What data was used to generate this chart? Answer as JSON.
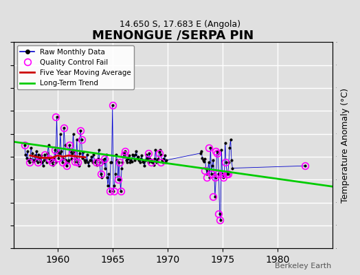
{
  "title": "MENONGUE /SERPA PIN",
  "subtitle": "14.650 S, 17.683 E (Angola)",
  "ylabel": "Temperature Anomaly (°C)",
  "xlabel": "",
  "watermark": "Berkeley Earth",
  "xlim": [
    1956,
    1985
  ],
  "ylim": [
    -8,
    10
  ],
  "yticks": [
    -8,
    -6,
    -4,
    -2,
    0,
    2,
    4,
    6,
    8,
    10
  ],
  "xticks": [
    1960,
    1965,
    1970,
    1975,
    1980
  ],
  "background_color": "#e8e8e8",
  "raw_data": {
    "x": [
      1957.0,
      1957.08,
      1957.17,
      1957.25,
      1957.33,
      1957.42,
      1957.5,
      1957.58,
      1957.67,
      1957.75,
      1957.83,
      1957.92,
      1958.0,
      1958.08,
      1958.17,
      1958.25,
      1958.33,
      1958.42,
      1958.5,
      1958.58,
      1958.67,
      1958.75,
      1958.83,
      1958.92,
      1959.0,
      1959.08,
      1959.17,
      1959.25,
      1959.33,
      1959.42,
      1959.5,
      1959.58,
      1959.67,
      1959.75,
      1959.83,
      1959.92,
      1960.0,
      1960.08,
      1960.17,
      1960.25,
      1960.33,
      1960.42,
      1960.5,
      1960.58,
      1960.67,
      1960.75,
      1960.83,
      1960.92,
      1961.0,
      1961.08,
      1961.17,
      1961.25,
      1961.33,
      1961.42,
      1961.5,
      1961.58,
      1961.67,
      1961.75,
      1961.83,
      1961.92,
      1962.0,
      1962.08,
      1962.17,
      1962.25,
      1962.33,
      1962.42,
      1962.5,
      1962.58,
      1962.67,
      1962.75,
      1962.83,
      1962.92,
      1963.0,
      1963.08,
      1963.17,
      1963.25,
      1963.42,
      1963.5,
      1963.58,
      1963.67,
      1963.75,
      1963.83,
      1963.92,
      1964.0,
      1964.08,
      1964.17,
      1964.25,
      1964.33,
      1964.42,
      1964.5,
      1964.58,
      1964.67,
      1964.75,
      1964.83,
      1964.92,
      1965.0,
      1965.08,
      1965.17,
      1965.25,
      1965.33,
      1965.42,
      1965.5,
      1965.58,
      1965.67,
      1965.75,
      1965.83,
      1965.92,
      1966.0,
      1966.08,
      1966.17,
      1966.25,
      1966.33,
      1966.42,
      1966.5,
      1966.58,
      1966.67,
      1966.75,
      1966.83,
      1966.92,
      1967.0,
      1967.08,
      1967.17,
      1967.25,
      1967.33,
      1967.42,
      1967.5,
      1967.58,
      1967.67,
      1967.75,
      1967.83,
      1967.92,
      1968.0,
      1968.08,
      1968.17,
      1968.25,
      1968.33,
      1968.42,
      1968.5,
      1968.58,
      1968.67,
      1968.75,
      1968.83,
      1968.92,
      1969.0,
      1969.08,
      1969.17,
      1969.25,
      1969.33,
      1969.42,
      1969.5,
      1969.58,
      1969.67,
      1969.75,
      1969.83,
      1969.92,
      1973.0,
      1973.08,
      1973.17,
      1973.25,
      1973.33,
      1973.42,
      1973.5,
      1973.58,
      1973.67,
      1973.75,
      1973.83,
      1973.92,
      1974.0,
      1974.08,
      1974.17,
      1974.25,
      1974.33,
      1974.42,
      1974.5,
      1974.58,
      1974.67,
      1974.75,
      1974.83,
      1974.92,
      1975.0,
      1975.08,
      1975.17,
      1975.25,
      1975.33,
      1975.42,
      1975.5,
      1975.58,
      1975.67,
      1975.75,
      1975.83,
      1975.92,
      1982.5
    ],
    "y": [
      1.0,
      0.2,
      -0.1,
      0.5,
      -0.3,
      -0.5,
      -0.2,
      0.8,
      0.3,
      -0.4,
      -0.3,
      0.1,
      -0.3,
      0.5,
      -0.5,
      0.2,
      -0.2,
      -0.4,
      0.1,
      -0.5,
      -0.8,
      -0.3,
      0.2,
      -0.1,
      -0.5,
      0.3,
      1.0,
      -0.2,
      -0.4,
      -0.3,
      -0.5,
      -0.7,
      -0.2,
      0.6,
      -0.5,
      3.5,
      0.4,
      -0.1,
      0.3,
      2.0,
      0.5,
      -0.5,
      -0.2,
      2.5,
      1.0,
      -0.3,
      -0.8,
      -0.5,
      -0.3,
      1.0,
      0.5,
      -0.2,
      0.3,
      2.0,
      0.5,
      -0.4,
      -0.2,
      1.5,
      -0.5,
      -0.8,
      0.3,
      2.3,
      1.5,
      -0.1,
      0.4,
      -0.3,
      -0.5,
      -0.3,
      0.2,
      -0.5,
      -0.8,
      -0.3,
      -0.3,
      0.0,
      -0.5,
      0.2,
      -0.5,
      -0.3,
      -0.7,
      -0.2,
      0.6,
      -0.5,
      -1.5,
      -1.8,
      -0.3,
      -0.5,
      -0.2,
      -1.0,
      0.2,
      -1.8,
      -2.5,
      -1.5,
      -3.0,
      -0.5,
      -0.5,
      4.5,
      -3.0,
      -2.5,
      -1.5,
      0.2,
      -0.3,
      -2.0,
      -0.5,
      -2.0,
      -3.0,
      -1.0,
      -0.5,
      0.3,
      0.2,
      0.5,
      -0.3,
      -0.5,
      -0.2,
      0.1,
      -0.5,
      -0.3,
      -0.4,
      0.2,
      0.1,
      -0.3,
      0.2,
      0.5,
      -0.1,
      0.0,
      -0.3,
      -0.5,
      -0.2,
      0.1,
      -0.4,
      -0.5,
      -0.8,
      -0.3,
      0.2,
      -0.1,
      -0.5,
      0.3,
      -0.2,
      -0.4,
      -0.3,
      -0.5,
      -0.7,
      -0.2,
      0.6,
      -0.5,
      -0.3,
      -0.2,
      0.4,
      0.6,
      0.2,
      -0.3,
      -0.5,
      -0.2,
      0.1,
      -0.5,
      -0.3,
      0.3,
      0.5,
      -0.1,
      -0.3,
      -0.4,
      -0.2,
      -1.0,
      -1.5,
      -1.2,
      -0.5,
      -1.8,
      0.8,
      -1.5,
      -0.8,
      -0.3,
      -1.5,
      -3.5,
      -1.8,
      0.5,
      0.3,
      -1.5,
      -5.0,
      -5.5,
      0.6,
      -1.5,
      -1.8,
      -1.5,
      1.2,
      -0.5,
      -1.5,
      -1.5,
      -0.5,
      0.8,
      1.5,
      -0.3,
      -1.0,
      -0.8
    ]
  },
  "qc_fail_x": [
    1957.0,
    1957.42,
    1958.17,
    1958.83,
    1959.25,
    1959.5,
    1959.75,
    1959.83,
    1960.08,
    1960.42,
    1960.58,
    1960.83,
    1961.08,
    1961.33,
    1961.58,
    1961.83,
    1962.08,
    1962.17,
    1963.5,
    1963.83,
    1963.92,
    1964.25,
    1964.75,
    1965.0,
    1965.17,
    1965.5,
    1965.67,
    1965.75,
    1966.08,
    1966.17,
    1968.25,
    1968.5,
    1969.25,
    1969.42,
    1973.42,
    1973.58,
    1973.75,
    1974.0,
    1974.17,
    1974.33,
    1974.42,
    1974.5,
    1974.58,
    1974.67,
    1974.75,
    1975.0,
    1975.08,
    1975.25,
    1975.42,
    1975.5,
    1982.5
  ],
  "qc_fail_y": [
    1.0,
    -0.5,
    -0.5,
    0.2,
    -0.2,
    -0.5,
    0.6,
    3.5,
    -0.1,
    -0.5,
    2.5,
    -0.8,
    1.0,
    0.3,
    -0.4,
    -0.5,
    2.3,
    1.5,
    -0.5,
    -0.5,
    -1.5,
    -0.2,
    -3.0,
    4.5,
    -3.0,
    -2.0,
    -0.5,
    -3.0,
    0.2,
    0.5,
    0.3,
    -0.5,
    0.3,
    -0.5,
    -1.2,
    -1.8,
    0.8,
    -1.5,
    -3.5,
    -1.8,
    0.5,
    0.3,
    -1.5,
    -5.0,
    -5.5,
    -1.5,
    -1.8,
    -0.5,
    -1.5,
    -1.5,
    -0.8
  ],
  "five_year_ma_x": [
    1957.5,
    1958.0,
    1958.5,
    1959.0,
    1959.5,
    1960.0,
    1960.5,
    1961.0,
    1961.5,
    1962.0,
    1962.5
  ],
  "five_year_ma_y": [
    0.1,
    0.0,
    -0.1,
    -0.1,
    -0.1,
    0.1,
    0.0,
    0.1,
    0.05,
    0.0,
    -0.05
  ],
  "trend_x": [
    1956,
    1985
  ],
  "trend_y": [
    1.3,
    -2.6
  ],
  "colors": {
    "raw_line": "#0000cc",
    "raw_marker": "#000000",
    "qc_fail": "#ff00ff",
    "five_year_ma": "#cc0000",
    "trend": "#00cc00",
    "background": "#e0e0e0",
    "grid": "#ffffff"
  }
}
